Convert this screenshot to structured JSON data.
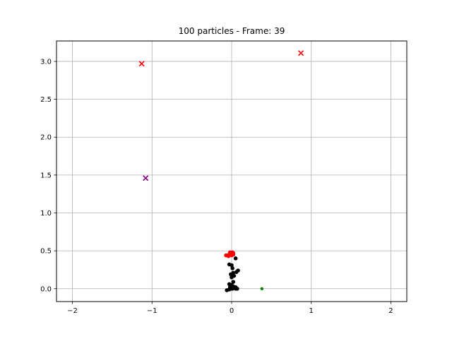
{
  "chart_data": {
    "type": "scatter",
    "title": "100 particles  - Frame: 39",
    "xlabel": "",
    "ylabel": "",
    "xlim": [
      -2.2,
      2.2
    ],
    "ylim": [
      -0.17,
      3.27
    ],
    "grid": true,
    "x_ticks": [
      -2,
      -1,
      0,
      1,
      2
    ],
    "y_ticks": [
      0.0,
      0.5,
      1.0,
      1.5,
      2.0,
      2.5,
      3.0
    ],
    "x_tick_labels": [
      "−2",
      "−1",
      "0",
      "1",
      "2"
    ],
    "y_tick_labels": [
      "0.0",
      "0.5",
      "1.0",
      "1.5",
      "2.0",
      "2.5",
      "3.0"
    ],
    "colors": {
      "particles": "#000000",
      "particles_red": "#ff0000",
      "green_point": "#008000",
      "x_red": "#ff0000",
      "x_purple": "#800080",
      "grid": "#b0b0b0"
    },
    "series": [
      {
        "marker": "dot",
        "color": "#000000",
        "points": [
          [
            -0.06,
            -0.02
          ],
          [
            -0.03,
            -0.01
          ],
          [
            -0.01,
            0.0
          ],
          [
            0.01,
            0.0
          ],
          [
            0.03,
            0.01
          ],
          [
            0.05,
            0.0
          ],
          [
            0.07,
            0.0
          ],
          [
            -0.02,
            0.02
          ],
          [
            0.02,
            0.03
          ],
          [
            0.05,
            0.02
          ],
          [
            -0.03,
            0.06
          ],
          [
            0.0,
            0.05
          ],
          [
            0.02,
            0.09
          ],
          [
            0.0,
            0.15
          ],
          [
            0.03,
            0.17
          ],
          [
            -0.01,
            0.19
          ],
          [
            0.02,
            0.21
          ],
          [
            0.06,
            0.22
          ],
          [
            0.08,
            0.24
          ],
          [
            0.01,
            0.27
          ],
          [
            -0.03,
            0.32
          ],
          [
            0.0,
            0.31
          ],
          [
            0.05,
            0.4
          ]
        ]
      },
      {
        "marker": "dot",
        "color": "#ff0000",
        "points": [
          [
            -0.07,
            0.44
          ],
          [
            -0.05,
            0.44
          ],
          [
            -0.03,
            0.45
          ],
          [
            -0.01,
            0.46
          ],
          [
            0.0,
            0.47
          ],
          [
            0.01,
            0.48
          ],
          [
            0.02,
            0.47
          ],
          [
            -0.02,
            0.48
          ],
          [
            0.0,
            0.44
          ],
          [
            0.02,
            0.45
          ],
          [
            -0.04,
            0.43
          ]
        ]
      },
      {
        "marker": "dot-small",
        "color": "#008000",
        "points": [
          [
            0.38,
            0.0
          ]
        ]
      },
      {
        "marker": "x",
        "color": "#ff0000",
        "points": [
          [
            -1.13,
            2.97
          ],
          [
            0.87,
            3.11
          ]
        ]
      },
      {
        "marker": "x",
        "color": "#800080",
        "points": [
          [
            -1.08,
            1.46
          ]
        ]
      }
    ]
  }
}
